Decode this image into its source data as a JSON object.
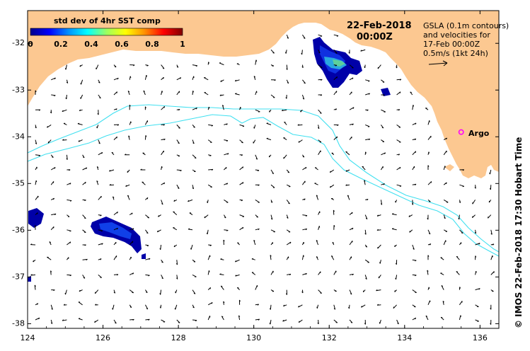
{
  "colorbar": {
    "title": "std dev of 4hr SST comp",
    "ticks": [
      "0",
      "0.2",
      "0.4",
      "0.6",
      "0.8",
      "1"
    ],
    "colors": [
      "#00008c",
      "#0000ff",
      "#0090ff",
      "#00ffff",
      "#9cff60",
      "#ffff00",
      "#ff9000",
      "#ff0000",
      "#800000"
    ]
  },
  "header": {
    "date": "22-Feb-2018",
    "time": "00:00Z"
  },
  "legend": {
    "lines": [
      "GSLA (0.1m contours)",
      "and velocities for",
      "17-Feb 00:00Z",
      "0.5m/s (1kt 24h)"
    ]
  },
  "argo": {
    "label": "Argo",
    "lon": 135.5,
    "lat": -33.9,
    "color": "#ff00ff"
  },
  "credit": "© IMOS 22-Feb-2018 17:30 Hobart Time",
  "axes": {
    "x_ticks": [
      "124",
      "126",
      "128",
      "130",
      "132",
      "134",
      "136"
    ],
    "y_ticks": [
      "-32",
      "-33",
      "-34",
      "-35",
      "-36",
      "-37",
      "-38"
    ],
    "x_range": [
      124,
      136.5
    ],
    "y_range": [
      -38.1,
      -31.3
    ]
  },
  "colors": {
    "land": "#fcc891",
    "contour": "#40e0f0",
    "arrows": "#000000"
  }
}
